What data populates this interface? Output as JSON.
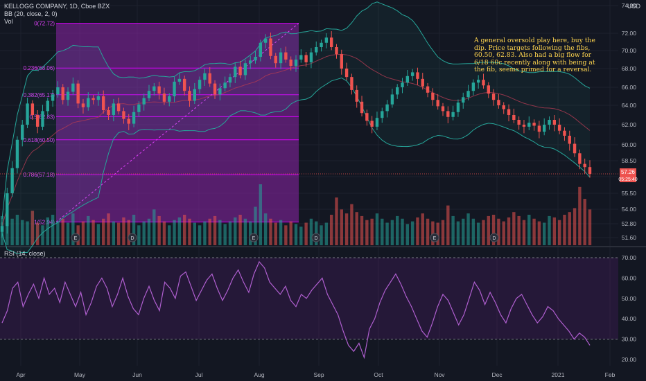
{
  "header": {
    "symbol_line": "KELLOGG COMPANY, 1D, Cboe BZX",
    "bb_line": "BB (20, close, 2, 0)",
    "vol_line": "Vol",
    "currency": "USD"
  },
  "rsi": {
    "label": "RSI (14, close)"
  },
  "annotation": {
    "text": "A general oversold play here, buy the dip. Price targets following the fibs, 60.50, 62.83. Also had a big flow for 6/18 60c recently along with being at the fib, seems primed for a reversal."
  },
  "colors": {
    "up": "#26a69a",
    "down": "#ef5350",
    "fib": "#d500f9",
    "rsi_line": "#b05fd0",
    "bb": "#26a69a",
    "background": "#131722",
    "price_tag": "#ef5350"
  },
  "chart_data": [
    {
      "type": "candlestick",
      "title": "KELLOGG COMPANY, 1D, Cboe BZX",
      "x_ticks": [
        "Apr",
        "May",
        "Jun",
        "Jul",
        "Aug",
        "Sep",
        "Oct",
        "Nov",
        "Dec",
        "2021",
        "Feb"
      ],
      "y_ticks": [
        74.0,
        72.0,
        70.0,
        68.0,
        66.0,
        64.0,
        62.0,
        60.0,
        58.5,
        57.0,
        55.5,
        54.0,
        52.8,
        51.6
      ],
      "last_price": "57.26",
      "last_time": "05:25:40",
      "close_series": [
        52.6,
        55.5,
        57.8,
        60.5,
        62.0,
        64.2,
        63.0,
        61.8,
        63.4,
        64.5,
        65.2,
        66.0,
        64.6,
        65.5,
        66.4,
        64.2,
        63.8,
        64.8,
        64.6,
        65.0,
        63.5,
        63.0,
        64.2,
        63.4,
        62.6,
        62.1,
        63.3,
        64.1,
        64.8,
        65.6,
        66.1,
        65.3,
        64.4,
        65.0,
        66.6,
        66.9,
        65.6,
        64.5,
        65.8,
        66.8,
        67.5,
        66.4,
        65.2,
        65.9,
        66.5,
        67.1,
        68.2,
        67.3,
        68.6,
        68.9,
        69.3,
        70.9,
        71.4,
        69.4,
        68.6,
        69.8,
        69.0,
        68.3,
        69.0,
        69.5,
        68.7,
        69.8,
        70.4,
        70.9,
        71.5,
        70.4,
        69.6,
        68.0,
        67.1,
        65.7,
        64.4,
        63.2,
        62.4,
        61.8,
        62.7,
        63.4,
        64.1,
        65.2,
        66.0,
        66.5,
        67.2,
        67.6,
        66.9,
        66.1,
        65.4,
        64.6,
        63.9,
        63.4,
        62.8,
        63.3,
        64.3,
        64.9,
        65.6,
        66.5,
        66.8,
        66.2,
        65.3,
        64.6,
        64.0,
        63.6,
        63.0,
        62.5,
        62.0,
        61.8,
        62.2,
        61.9,
        61.3,
        62.0,
        62.5,
        62.0,
        61.4,
        60.9,
        60.1,
        59.2,
        58.2,
        57.9,
        57.26
      ],
      "volume_series": [
        44,
        50,
        40,
        46,
        38,
        36,
        52,
        34,
        30,
        42,
        46,
        36,
        40,
        34,
        48,
        30,
        36,
        44,
        38,
        32,
        40,
        48,
        36,
        34,
        42,
        38,
        46,
        30,
        36,
        40,
        54,
        44,
        36,
        30,
        38,
        42,
        46,
        40,
        34,
        30,
        36,
        40,
        44,
        38,
        32,
        36,
        42,
        46,
        40,
        36,
        58,
        92,
        48,
        40,
        34,
        38,
        30,
        36,
        32,
        28,
        34,
        40,
        36,
        30,
        34,
        46,
        72,
        54,
        48,
        62,
        50,
        44,
        38,
        40,
        48,
        40,
        34,
        38,
        44,
        40,
        32,
        36,
        42,
        48,
        40,
        36,
        34,
        38,
        60,
        44,
        36,
        40,
        48,
        40,
        34,
        38,
        44,
        46,
        40,
        36,
        42,
        50,
        44,
        38,
        46,
        40,
        36,
        34,
        44,
        42,
        38,
        46,
        50,
        56,
        88,
        70,
        54
      ],
      "events": [
        {
          "label": "E",
          "x_label": "May"
        },
        {
          "label": "D",
          "x_label": "Jun"
        },
        {
          "label": "E",
          "x_label": "Aug"
        },
        {
          "label": "D",
          "x_label": "Sep"
        },
        {
          "label": "E",
          "x_label": "Nov"
        },
        {
          "label": "D",
          "x_label": "Nov"
        }
      ],
      "fib_levels": [
        {
          "ratio": "0",
          "price": 72.72,
          "label": "0(72.72)"
        },
        {
          "ratio": "0.236",
          "price": 68.06,
          "label": "0.236(68.06)"
        },
        {
          "ratio": "0.382",
          "price": 65.17,
          "label": "0.382(65.17)"
        },
        {
          "ratio": "0.5",
          "price": 62.83,
          "label": "0.5(62.83)"
        },
        {
          "ratio": "0.618",
          "price": 60.5,
          "label": "0.618(60.50)"
        },
        {
          "ratio": "0.786",
          "price": 57.18,
          "label": "0.786(57.18)"
        },
        {
          "ratio": "1",
          "price": 52.94,
          "label": "1(52.94)"
        }
      ]
    },
    {
      "type": "line",
      "title": "RSI (14, close)",
      "y_ticks": [
        70.0,
        60.0,
        50.0,
        40.0,
        30.0,
        20.0
      ],
      "ylim": [
        17,
        73
      ],
      "bands": [
        30,
        70
      ],
      "values": [
        38,
        44,
        55,
        58,
        46,
        52,
        57,
        50,
        60,
        52,
        55,
        48,
        58,
        52,
        46,
        53,
        42,
        48,
        56,
        60,
        55,
        46,
        52,
        60,
        51,
        45,
        42,
        50,
        56,
        49,
        44,
        58,
        55,
        50,
        61,
        63,
        56,
        49,
        54,
        59,
        62,
        55,
        49,
        54,
        60,
        64,
        58,
        53,
        62,
        68,
        65,
        58,
        55,
        52,
        56,
        49,
        46,
        52,
        50,
        54,
        57,
        60,
        52,
        47,
        42,
        34,
        27,
        24,
        28,
        21,
        35,
        40,
        48,
        54,
        58,
        62,
        57,
        51,
        46,
        40,
        34,
        31,
        38,
        46,
        52,
        49,
        43,
        37,
        42,
        50,
        58,
        54,
        47,
        53,
        48,
        42,
        38,
        45,
        50,
        52,
        47,
        42,
        38,
        41,
        46,
        44,
        40,
        37,
        34,
        30,
        33,
        31,
        27
      ]
    }
  ]
}
